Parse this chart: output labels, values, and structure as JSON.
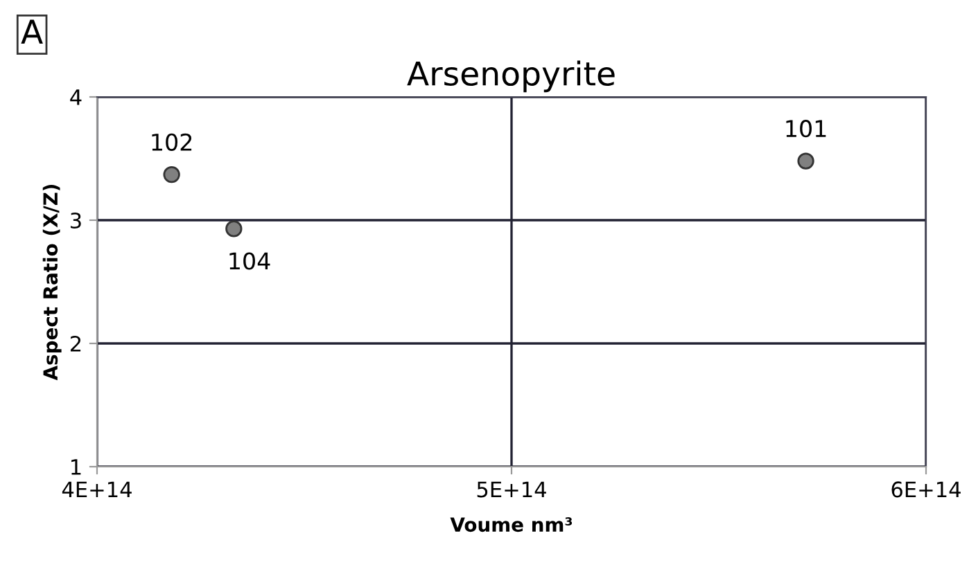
{
  "chart_data": {
    "type": "scatter",
    "title": "Arsenopyrite",
    "xlabel": "Voume nm³",
    "ylabel": "Aspect Ratio (X/Z)",
    "x": [
      418000000000000.0,
      433000000000000.0,
      571000000000000.0
    ],
    "values": [
      3.37,
      2.93,
      3.48
    ],
    "color": "#808080",
    "marker": "circle",
    "xlim": [
      400000000000000.0,
      600000000000000.0
    ],
    "xticks": [
      {
        "value": 400000000000000.0,
        "label": "4E+14"
      },
      {
        "value": 500000000000000.0,
        "label": "5E+14"
      },
      {
        "value": 600000000000000.0,
        "label": "6E+14"
      }
    ],
    "ylim": [
      1,
      4
    ],
    "yticks": [
      1,
      2,
      3,
      4
    ],
    "grid": true,
    "annotations": [
      "A",
      {
        "text": "102",
        "x": 418000000000000.0,
        "y": 3.37
      },
      {
        "text": "104",
        "x": 433000000000000.0,
        "y": 2.93
      },
      {
        "text": "101",
        "x": 571000000000000.0,
        "y": 3.48
      }
    ]
  }
}
